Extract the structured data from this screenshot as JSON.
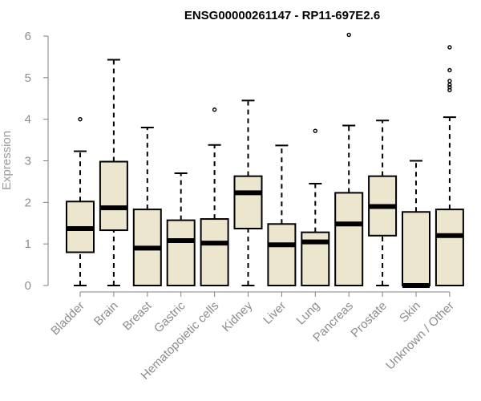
{
  "chart_data": {
    "type": "boxplot",
    "title": "ENSG00000261147 - RP11-697E2.6",
    "ylabel": "Expression",
    "xlabel": "",
    "ylim": [
      0,
      6
    ],
    "yticks": [
      0,
      1,
      2,
      3,
      4,
      5,
      6
    ],
    "grid": false,
    "colors": {
      "box_fill": "#ede6cf",
      "box_stroke": "#000000",
      "axis": "#808080",
      "tick_label": "#8c8c8c"
    },
    "categories": [
      "Bladder",
      "Brain",
      "Breast",
      "Gastric",
      "Hematopoietic cells",
      "Kidney",
      "Liver",
      "Lung",
      "Pancreas",
      "Prostate",
      "Skin",
      "Unknown / Other"
    ],
    "boxes": [
      {
        "name": "Bladder",
        "whisker_low": 0,
        "q1": 0.8,
        "median": 1.37,
        "q3": 2.02,
        "whisker_high": 3.23,
        "outliers": [
          4.0
        ]
      },
      {
        "name": "Brain",
        "whisker_low": 0,
        "q1": 1.33,
        "median": 1.87,
        "q3": 2.98,
        "whisker_high": 5.43,
        "outliers": []
      },
      {
        "name": "Breast",
        "whisker_low": 0,
        "q1": 0,
        "median": 0.9,
        "q3": 1.83,
        "whisker_high": 3.8,
        "outliers": []
      },
      {
        "name": "Gastric",
        "whisker_low": 0,
        "q1": 0,
        "median": 1.08,
        "q3": 1.57,
        "whisker_high": 2.7,
        "outliers": []
      },
      {
        "name": "Hematopoietic cells",
        "whisker_low": 0,
        "q1": 0,
        "median": 1.02,
        "q3": 1.6,
        "whisker_high": 3.38,
        "outliers": [
          4.23
        ]
      },
      {
        "name": "Kidney",
        "whisker_low": 0,
        "q1": 1.37,
        "median": 2.23,
        "q3": 2.63,
        "whisker_high": 4.45,
        "outliers": []
      },
      {
        "name": "Liver",
        "whisker_low": 0,
        "q1": 0,
        "median": 0.98,
        "q3": 1.48,
        "whisker_high": 3.37,
        "outliers": []
      },
      {
        "name": "Lung",
        "whisker_low": 0,
        "q1": 0,
        "median": 1.05,
        "q3": 1.28,
        "whisker_high": 2.45,
        "outliers": [
          3.72
        ]
      },
      {
        "name": "Pancreas",
        "whisker_low": 0,
        "q1": 0,
        "median": 1.48,
        "q3": 2.23,
        "whisker_high": 3.85,
        "outliers": [
          6.03
        ]
      },
      {
        "name": "Prostate",
        "whisker_low": 0,
        "q1": 1.2,
        "median": 1.9,
        "q3": 2.63,
        "whisker_high": 3.97,
        "outliers": []
      },
      {
        "name": "Skin",
        "whisker_low": 0,
        "q1": 0,
        "median": 0,
        "q3": 1.77,
        "whisker_high": 3.0,
        "outliers": []
      },
      {
        "name": "Unknown / Other",
        "whisker_low": 0,
        "q1": 0,
        "median": 1.2,
        "q3": 1.83,
        "whisker_high": 4.05,
        "outliers": [
          4.7,
          4.77,
          4.83,
          4.92,
          5.18,
          5.73
        ]
      }
    ]
  }
}
